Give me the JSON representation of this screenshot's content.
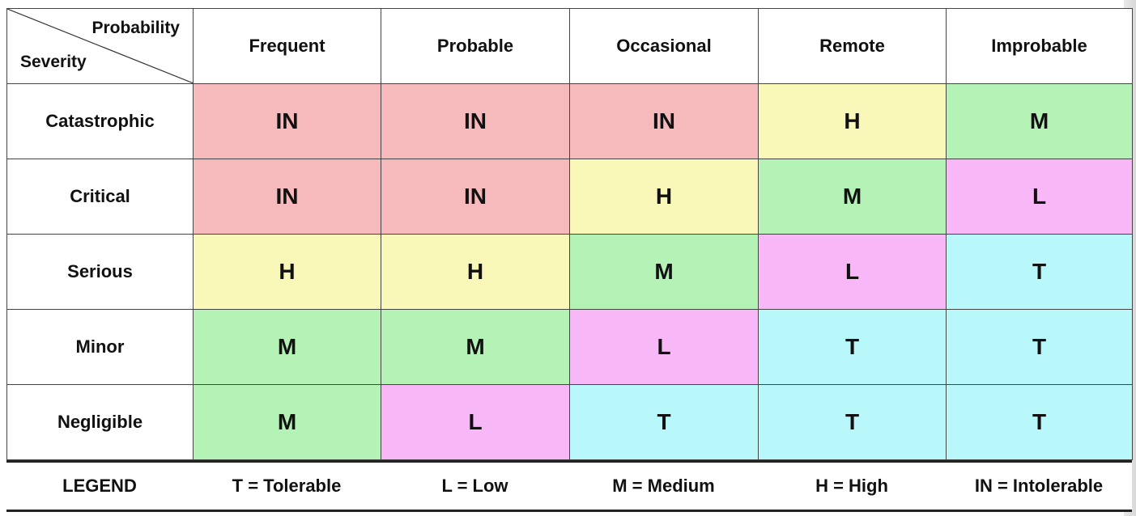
{
  "header": {
    "corner_probability": "Probability",
    "corner_severity": "Severity",
    "columns": [
      "Frequent",
      "Probable",
      "Occasional",
      "Remote",
      "Improbable"
    ]
  },
  "rows": [
    {
      "label": "Catastrophic",
      "cells": [
        "IN",
        "IN",
        "IN",
        "H",
        "M"
      ]
    },
    {
      "label": "Critical",
      "cells": [
        "IN",
        "IN",
        "H",
        "M",
        "L"
      ]
    },
    {
      "label": "Serious",
      "cells": [
        "H",
        "H",
        "M",
        "L",
        "T"
      ]
    },
    {
      "label": "Minor",
      "cells": [
        "M",
        "M",
        "L",
        "T",
        "T"
      ]
    },
    {
      "label": "Negligible",
      "cells": [
        "M",
        "L",
        "T",
        "T",
        "T"
      ]
    }
  ],
  "legend": {
    "title": "LEGEND",
    "items": [
      "T = Tolerable",
      "L =  Low",
      "M = Medium",
      "H = High",
      "IN = Intolerable"
    ]
  },
  "colors": {
    "IN": "#f9b9bb",
    "H": "#fdfbb6",
    "M": "#b3f4b3",
    "L": "#fbb6fb",
    "T": "#b6fbfc"
  }
}
